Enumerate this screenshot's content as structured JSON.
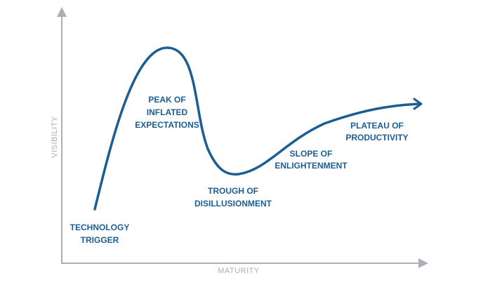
{
  "axes": {
    "y_label": "VISIBILITY",
    "x_label": "MATURITY"
  },
  "stages": [
    {
      "lines": [
        "TECHNOLOGY",
        "TRIGGER"
      ]
    },
    {
      "lines": [
        "PEAK OF",
        "INFLATED",
        "EXPECTATIONS"
      ]
    },
    {
      "lines": [
        "TROUGH OF",
        "DISILLUSIONMENT"
      ]
    },
    {
      "lines": [
        "SLOPE OF",
        "ENLIGHTENMENT"
      ]
    },
    {
      "lines": [
        "PLATEAU OF",
        "PRODUCTIVITY"
      ]
    }
  ]
}
